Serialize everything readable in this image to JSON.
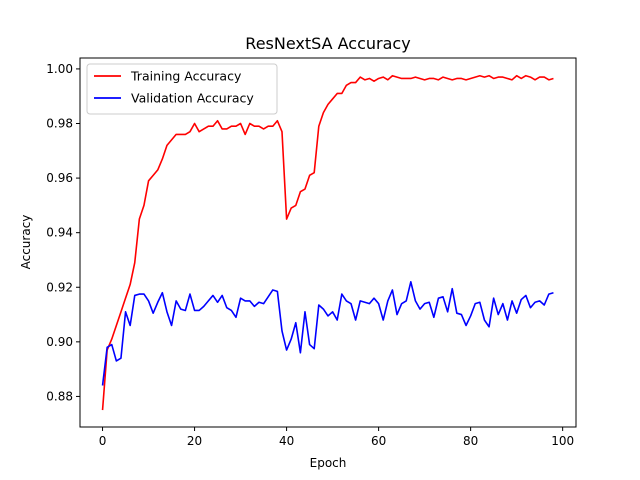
{
  "chart_data": {
    "type": "line",
    "title": "ResNextSA Accuracy",
    "xlabel": "Epoch",
    "ylabel": "Accuracy",
    "xlim": [
      -4.9,
      102.9
    ],
    "ylim": [
      0.8688,
      1.004
    ],
    "xticks": [
      0,
      20,
      40,
      60,
      80,
      100
    ],
    "yticks": [
      0.88,
      0.9,
      0.92,
      0.94,
      0.96,
      0.98,
      1.0
    ],
    "xtick_labels": [
      "0",
      "20",
      "40",
      "60",
      "80",
      "100"
    ],
    "ytick_labels": [
      "0.88",
      "0.90",
      "0.92",
      "0.94",
      "0.96",
      "0.98",
      "1.00"
    ],
    "grid": false,
    "legend_position": "top-left",
    "series": [
      {
        "name": "Training Accuracy",
        "color": "#ff0000",
        "values": [
          0.875,
          0.897,
          0.901,
          0.906,
          0.911,
          0.916,
          0.921,
          0.929,
          0.945,
          0.95,
          0.959,
          0.961,
          0.963,
          0.967,
          0.972,
          0.974,
          0.976,
          0.976,
          0.976,
          0.977,
          0.98,
          0.977,
          0.978,
          0.979,
          0.979,
          0.981,
          0.978,
          0.978,
          0.979,
          0.979,
          0.98,
          0.976,
          0.98,
          0.979,
          0.979,
          0.978,
          0.979,
          0.979,
          0.981,
          0.977,
          0.945,
          0.949,
          0.95,
          0.955,
          0.956,
          0.961,
          0.962,
          0.979,
          0.984,
          0.987,
          0.989,
          0.991,
          0.991,
          0.994,
          0.995,
          0.995,
          0.997,
          0.996,
          0.9965,
          0.9955,
          0.9965,
          0.997,
          0.996,
          0.9975,
          0.997,
          0.9965,
          0.9965,
          0.9965,
          0.997,
          0.9965,
          0.996,
          0.9965,
          0.9965,
          0.996,
          0.997,
          0.9965,
          0.996,
          0.9965,
          0.9965,
          0.996,
          0.9965,
          0.997,
          0.9975,
          0.997,
          0.9975,
          0.9965,
          0.997,
          0.997,
          0.9965,
          0.996,
          0.9975,
          0.9965,
          0.9975,
          0.997,
          0.996,
          0.997,
          0.997,
          0.996,
          0.9965
        ]
      },
      {
        "name": "Validation Accuracy",
        "color": "#0000ff",
        "values": [
          0.884,
          0.898,
          0.899,
          0.893,
          0.894,
          0.911,
          0.906,
          0.917,
          0.9175,
          0.9175,
          0.915,
          0.9105,
          0.9145,
          0.918,
          0.911,
          0.906,
          0.915,
          0.912,
          0.9115,
          0.9175,
          0.9115,
          0.9115,
          0.913,
          0.915,
          0.917,
          0.9145,
          0.917,
          0.9125,
          0.9115,
          0.909,
          0.916,
          0.915,
          0.915,
          0.913,
          0.9145,
          0.914,
          0.9165,
          0.919,
          0.9185,
          0.904,
          0.897,
          0.901,
          0.907,
          0.896,
          0.911,
          0.899,
          0.8975,
          0.9135,
          0.912,
          0.9095,
          0.911,
          0.908,
          0.9175,
          0.915,
          0.914,
          0.908,
          0.915,
          0.9145,
          0.914,
          0.916,
          0.914,
          0.908,
          0.915,
          0.919,
          0.91,
          0.914,
          0.915,
          0.922,
          0.915,
          0.912,
          0.914,
          0.9145,
          0.909,
          0.916,
          0.9165,
          0.911,
          0.9195,
          0.9105,
          0.91,
          0.906,
          0.9095,
          0.914,
          0.9145,
          0.908,
          0.9055,
          0.916,
          0.91,
          0.914,
          0.908,
          0.915,
          0.9105,
          0.9155,
          0.917,
          0.9125,
          0.9145,
          0.915,
          0.9135,
          0.9175,
          0.918
        ]
      }
    ]
  }
}
